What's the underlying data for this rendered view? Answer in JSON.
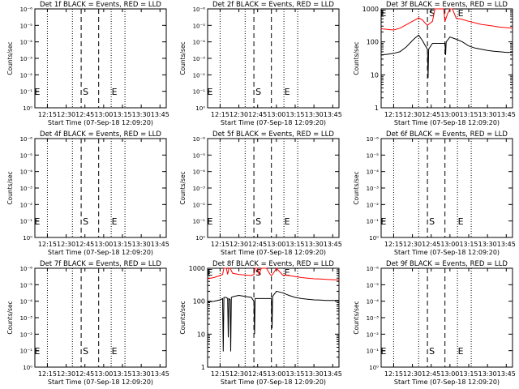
{
  "xlabel": "Start Time (07-Sep-18 12:09:20)",
  "ylabel": "Counts/sec",
  "colors": {
    "events": "#000000",
    "lld": "#ff0000",
    "axes": "#000000"
  },
  "x_ticks": [
    "12:15",
    "12:30",
    "12:45",
    "13:00",
    "13:15",
    "13:30",
    "13:45"
  ],
  "x_range_minutes": [
    725,
    830
  ],
  "y_ticks_small": [
    "10⁰",
    "10⁻¹",
    "10⁻²",
    "10⁻³",
    "10⁻⁴",
    "10⁻⁵",
    "10⁻⁶"
  ],
  "y_ticks_log": [
    "1",
    "10",
    "100",
    "1000"
  ],
  "vlines": {
    "dotted_minutes": [
      735,
      755,
      786,
      797
    ],
    "dashed_minutes": [
      762,
      776
    ],
    "markers": [
      {
        "label": "S",
        "minute": 762
      },
      {
        "label": "E",
        "minute": 785
      },
      {
        "label": "E",
        "minute": 726
      }
    ]
  },
  "chart_data": [
    {
      "type": "line",
      "title": "Det 1f BLACK = Events, RED = LLD",
      "yscale": "small",
      "series": []
    },
    {
      "type": "line",
      "title": "Det 2f BLACK = Events, RED = LLD",
      "yscale": "small",
      "series": []
    },
    {
      "type": "line",
      "title": "Det 3f BLACK = Events, RED = LLD",
      "yscale": "log",
      "ylim": [
        1,
        1000
      ],
      "series": [
        {
          "color": "#ff0000",
          "x": [
            725,
            730,
            735,
            740,
            745,
            750,
            752,
            755,
            758,
            760,
            762,
            763,
            766,
            768,
            770,
            772,
            774,
            775,
            776,
            778,
            780,
            782,
            785,
            790,
            795,
            800,
            805,
            810,
            815,
            820,
            825,
            830
          ],
          "y": [
            250,
            240,
            230,
            260,
            330,
            420,
            460,
            540,
            460,
            380,
            320,
            340,
            420,
            1000,
            1000,
            1000,
            1000,
            1000,
            420,
            700,
            1000,
            1000,
            520,
            480,
            420,
            380,
            340,
            320,
            300,
            280,
            270,
            260
          ]
        },
        {
          "color": "#000000",
          "x": [
            725,
            730,
            735,
            740,
            745,
            750,
            752,
            755,
            758,
            760,
            762,
            762.5,
            763,
            766,
            776,
            776.5,
            777,
            780,
            785,
            790,
            795,
            800,
            805,
            810,
            815,
            820,
            825,
            830
          ],
          "y": [
            40,
            42,
            45,
            50,
            70,
            110,
            130,
            160,
            110,
            80,
            60,
            8,
            60,
            90,
            90,
            40,
            100,
            140,
            120,
            100,
            75,
            65,
            60,
            55,
            52,
            50,
            48,
            48
          ]
        }
      ]
    },
    {
      "type": "line",
      "title": "Det 4f BLACK = Events, RED = LLD",
      "yscale": "small",
      "series": []
    },
    {
      "type": "line",
      "title": "Det 5f BLACK = Events, RED = LLD",
      "yscale": "small",
      "series": []
    },
    {
      "type": "line",
      "title": "Det 6f BLACK = Events, RED = LLD",
      "yscale": "small",
      "series": []
    },
    {
      "type": "line",
      "title": "Det 7f BLACK = Events, RED = LLD",
      "yscale": "small",
      "series": []
    },
    {
      "type": "line",
      "title": "Det 8f BLACK = Events, RED = LLD",
      "yscale": "log",
      "ylim": [
        1,
        1000
      ],
      "series": [
        {
          "color": "#ff0000",
          "x": [
            725,
            730,
            735,
            737,
            738,
            740,
            741,
            742,
            743,
            745,
            750,
            755,
            760,
            762,
            763,
            765,
            766,
            768,
            770,
            772,
            775,
            776,
            777,
            780,
            785,
            790,
            795,
            800,
            805,
            810,
            815,
            820,
            825,
            830
          ],
          "y": [
            480,
            520,
            600,
            650,
            1000,
            1000,
            650,
            1000,
            1000,
            700,
            650,
            620,
            600,
            650,
            1000,
            1000,
            650,
            1000,
            1000,
            1000,
            650,
            600,
            650,
            1000,
            620,
            600,
            560,
            520,
            500,
            480,
            470,
            460,
            450,
            440
          ]
        },
        {
          "color": "#000000",
          "x": [
            725,
            730,
            735,
            737,
            737.5,
            738,
            740,
            741,
            741.5,
            742,
            743,
            743.5,
            744,
            746,
            750,
            755,
            760,
            762,
            762.5,
            763,
            776,
            776.5,
            777,
            780,
            785,
            790,
            795,
            800,
            805,
            810,
            815,
            820,
            825,
            830
          ],
          "y": [
            95,
            100,
            110,
            120,
            3,
            130,
            130,
            120,
            8,
            120,
            110,
            3,
            130,
            140,
            150,
            140,
            130,
            100,
            10,
            120,
            120,
            15,
            140,
            200,
            180,
            150,
            130,
            120,
            115,
            110,
            108,
            105,
            105,
            105
          ]
        }
      ]
    },
    {
      "type": "line",
      "title": "Det 9f BLACK = Events, RED = LLD",
      "yscale": "small",
      "series": []
    }
  ]
}
